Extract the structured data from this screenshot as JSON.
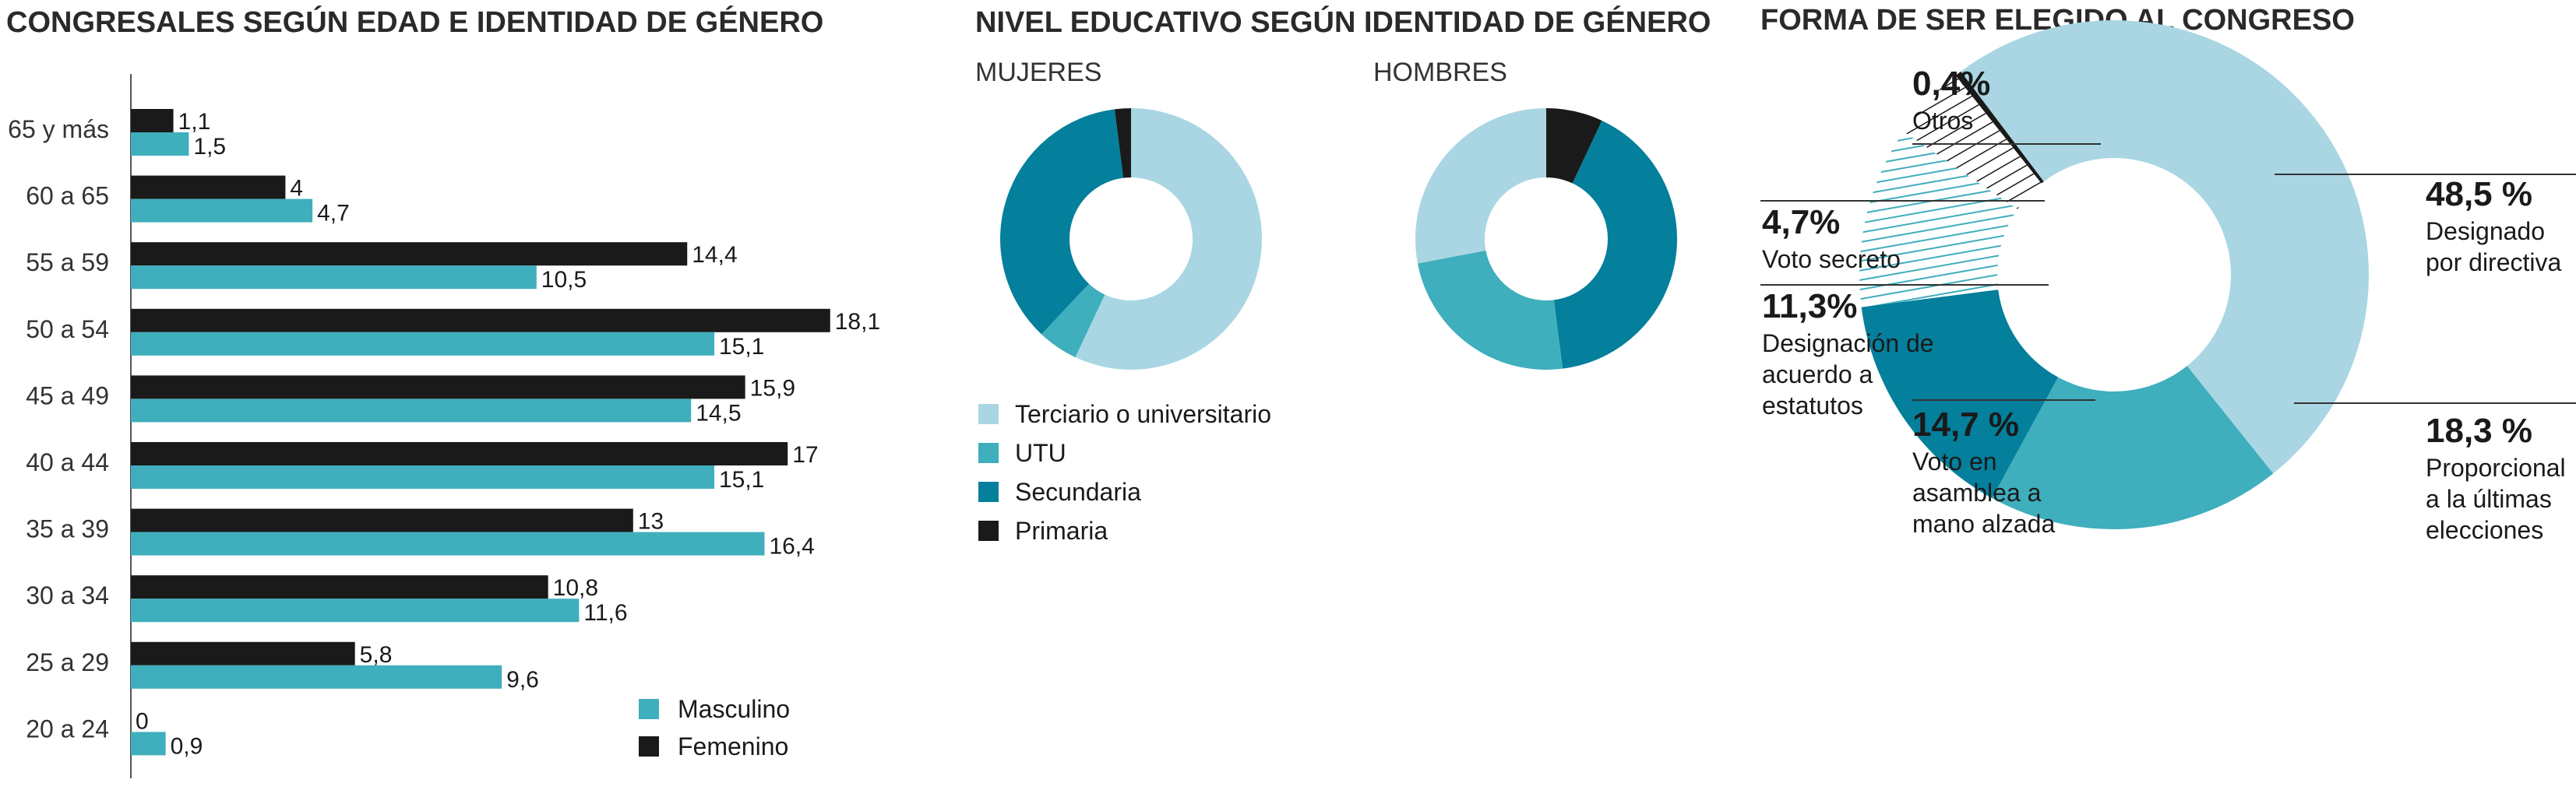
{
  "panels": {
    "age": {
      "title": "CONGRESALES SEGÚN EDAD E IDENTIDAD DE GÉNERO"
    },
    "education": {
      "title": "NIVEL EDUCATIVO SEGÚN IDENTIDAD DE GÉNERO",
      "subtitle_women": "MUJERES",
      "subtitle_men": "HOMBRES"
    },
    "election": {
      "title": "FORMA DE SER ELEGIDO AL CONGRESO"
    }
  },
  "colors": {
    "masculino": "#3faebd",
    "femenino": "#1a1a1a",
    "terciario": "#a9d6e2",
    "utu": "#3faebd",
    "secundaria": "#047f9c",
    "primaria": "#1a1a1a",
    "axis": "#555555"
  },
  "chart_data": [
    {
      "type": "bar",
      "orientation": "horizontal",
      "title": "CONGRESALES SEGÚN EDAD E IDENTIDAD DE GÉNERO",
      "categories": [
        "65 y más",
        "60 a 65",
        "55 a 59",
        "50 a 54",
        "45 a 49",
        "40 a 44",
        "35 a 39",
        "30 a 34",
        "25 a 29",
        "20 a 24"
      ],
      "xlim": [
        0,
        20
      ],
      "series": [
        {
          "name": "Femenino",
          "values": [
            1.1,
            4,
            14.4,
            18.1,
            15.9,
            17,
            13,
            10.8,
            5.8,
            0
          ],
          "labels": [
            "1,1",
            "4",
            "14,4",
            "18,1",
            "15,9",
            "17",
            "13",
            "10,8",
            "5,8",
            "0"
          ]
        },
        {
          "name": "Masculino",
          "values": [
            1.5,
            4.7,
            10.5,
            15.1,
            14.5,
            15.1,
            16.4,
            11.6,
            9.6,
            0.9
          ],
          "labels": [
            "1,5",
            "4,7",
            "10,5",
            "15,1",
            "14,5",
            "15,1",
            "16,4",
            "11,6",
            "9,6",
            "0,9"
          ]
        }
      ],
      "legend": {
        "position": "bottom-right",
        "entries": [
          "Masculino",
          "Femenino"
        ]
      }
    },
    {
      "type": "pie",
      "donut": true,
      "subtitle": "MUJERES",
      "slices": [
        {
          "name": "Terciario o universitario",
          "value": 57,
          "color": "#a9d6e2"
        },
        {
          "name": "UTU",
          "value": 5,
          "color": "#3faebd"
        },
        {
          "name": "Secundaria",
          "value": 36,
          "color": "#047f9c"
        },
        {
          "name": "Primaria",
          "value": 2,
          "color": "#1a1a1a"
        }
      ],
      "legend": {
        "position": "bottom",
        "entries": [
          "Terciario o universitario",
          "UTU",
          "Secundaria",
          "Primaria"
        ]
      }
    },
    {
      "type": "pie",
      "donut": true,
      "subtitle": "HOMBRES",
      "slices": [
        {
          "name": "Primaria",
          "value": 7,
          "color": "#1a1a1a"
        },
        {
          "name": "Secundaria",
          "value": 41,
          "color": "#047f9c"
        },
        {
          "name": "UTU",
          "value": 24,
          "color": "#3faebd"
        },
        {
          "name": "Terciario o universitario",
          "value": 28,
          "color": "#a9d6e2"
        }
      ]
    },
    {
      "type": "pie",
      "donut": true,
      "title": "FORMA DE SER ELEGIDO AL CONGRESO",
      "slices": [
        {
          "key": "directiva",
          "pct": "48,5 %",
          "desc": "Designado por directiva",
          "value": 48.5,
          "fill": "#a9d6e2"
        },
        {
          "key": "proporcional",
          "pct": "18,3 %",
          "desc": "Proporcional a la últimas elecciones",
          "value": 18.3,
          "fill": "#3faebd"
        },
        {
          "key": "asamblea",
          "pct": "14,7 %",
          "desc": "Voto en asamblea a mano alzada",
          "value": 14.7,
          "fill": "#047f9c"
        },
        {
          "key": "estatutos",
          "pct": "11,3%",
          "desc": "Designación de acuerdo a estatutos",
          "value": 11.3,
          "fill": "hatch-teal"
        },
        {
          "key": "secreto",
          "pct": "4,7%",
          "desc": "Voto secreto",
          "value": 4.7,
          "fill": "hatch-dark"
        },
        {
          "key": "otros",
          "pct": "0,4%",
          "desc": "Otros",
          "value": 0.4,
          "fill": "#1a1a1a"
        }
      ]
    }
  ],
  "election_labels": {
    "otros": {
      "pct": "0,4%",
      "lines": [
        "Otros"
      ]
    },
    "secreto": {
      "pct": "4,7%",
      "lines": [
        "Voto secreto"
      ]
    },
    "estatutos": {
      "pct": "11,3%",
      "lines": [
        "Designación de",
        "acuerdo a",
        "estatutos"
      ]
    },
    "asamblea": {
      "pct": "14,7 %",
      "lines": [
        "Voto en",
        "asamblea a",
        "mano alzada"
      ]
    },
    "directiva": {
      "pct": "48,5 %",
      "lines": [
        "Designado",
        "por directiva"
      ]
    },
    "proporcional": {
      "pct": "18,3 %",
      "lines": [
        "Proporcional",
        " a la últimas",
        "elecciones"
      ]
    }
  }
}
